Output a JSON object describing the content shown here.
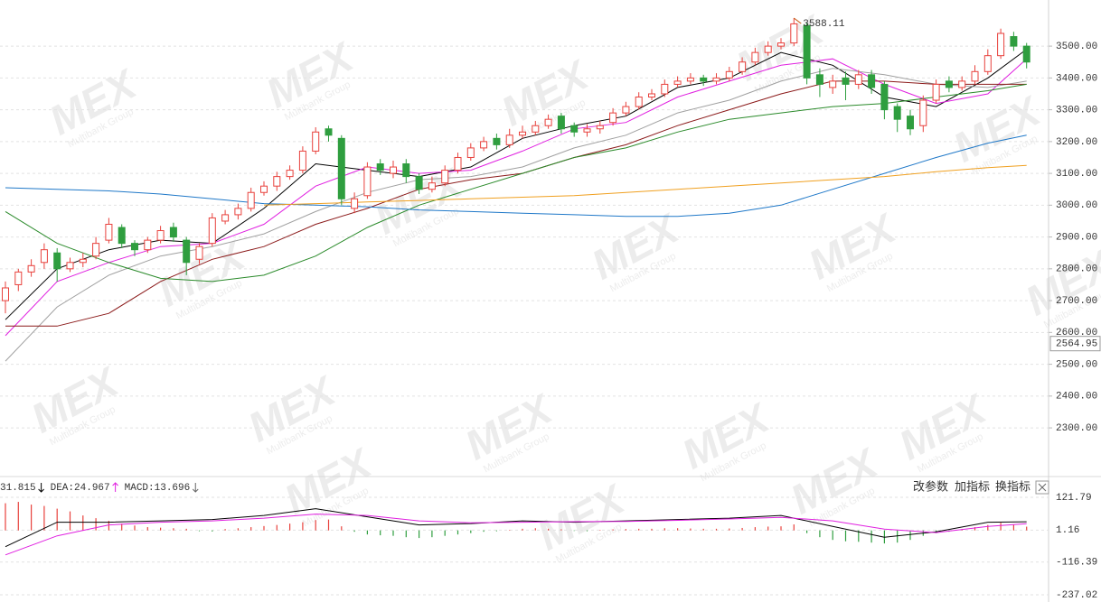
{
  "chart_data": [
    {
      "type": "candlestick",
      "ylim": [
        2147,
        3645
      ],
      "yticks": [
        {
          "value": 2300,
          "label": "2300.00"
        },
        {
          "value": 2400,
          "label": "2400.00"
        },
        {
          "value": 2500,
          "label": "2500.00"
        },
        {
          "value": 2600,
          "label": "2600.00"
        },
        {
          "value": 2700,
          "label": "2700.00"
        },
        {
          "value": 2800,
          "label": "2800.00"
        },
        {
          "value": 2900,
          "label": "2900.00"
        },
        {
          "value": 3000,
          "label": "3000.00"
        },
        {
          "value": 3100,
          "label": "3100.00"
        },
        {
          "value": 3200,
          "label": "3200.00"
        },
        {
          "value": 3300,
          "label": "3300.00"
        },
        {
          "value": 3400,
          "label": "3400.00"
        },
        {
          "value": 3500,
          "label": "3500.00"
        }
      ],
      "grid": true,
      "up_color": "#e8413c",
      "down_color": "#2f9e3f",
      "open": [
        2700,
        2750,
        2790,
        2820,
        2850,
        2800,
        2820,
        2840,
        2890,
        2930,
        2880,
        2860,
        2890,
        2930,
        2890,
        2830,
        2880,
        2950,
        2970,
        2990,
        3040,
        3060,
        3090,
        3110,
        3170,
        3240,
        3210,
        2990,
        3030,
        3130,
        3100,
        3130,
        3090,
        3050,
        3070,
        3110,
        3150,
        3180,
        3210,
        3190,
        3220,
        3230,
        3250,
        3280,
        3250,
        3230,
        3240,
        3260,
        3290,
        3310,
        3340,
        3350,
        3380,
        3390,
        3400,
        3390,
        3400,
        3420,
        3450,
        3480,
        3500,
        3510,
        3565,
        3410,
        3370,
        3400,
        3380,
        3410,
        3380,
        3310,
        3280,
        3250,
        3330,
        3390,
        3370,
        3390,
        3420,
        3470,
        3530,
        3500
      ],
      "high": [
        2760,
        2800,
        2830,
        2880,
        2865,
        2835,
        2850,
        2900,
        2960,
        2940,
        2890,
        2900,
        2935,
        2945,
        2900,
        2880,
        2975,
        2985,
        3005,
        3055,
        3075,
        3105,
        3125,
        3185,
        3245,
        3250,
        3220,
        3040,
        3135,
        3145,
        3140,
        3145,
        3100,
        3090,
        3125,
        3165,
        3195,
        3215,
        3225,
        3240,
        3250,
        3265,
        3285,
        3290,
        3260,
        3255,
        3265,
        3305,
        3325,
        3355,
        3365,
        3395,
        3405,
        3415,
        3410,
        3415,
        3435,
        3465,
        3495,
        3515,
        3525,
        3588.11,
        3575,
        3430,
        3410,
        3420,
        3425,
        3425,
        3390,
        3320,
        3300,
        3345,
        3395,
        3405,
        3405,
        3440,
        3490,
        3555,
        3545,
        3510
      ],
      "low": [
        2660,
        2730,
        2775,
        2800,
        2760,
        2790,
        2805,
        2830,
        2880,
        2865,
        2840,
        2850,
        2880,
        2885,
        2780,
        2815,
        2870,
        2940,
        2955,
        2980,
        3030,
        3045,
        3080,
        3100,
        3160,
        3200,
        3000,
        2975,
        3020,
        3095,
        3085,
        3070,
        3035,
        3040,
        3060,
        3100,
        3140,
        3170,
        3175,
        3180,
        3210,
        3220,
        3240,
        3225,
        3215,
        3215,
        3225,
        3250,
        3280,
        3300,
        3330,
        3340,
        3370,
        3380,
        3375,
        3380,
        3390,
        3410,
        3440,
        3470,
        3490,
        3500,
        3380,
        3340,
        3350,
        3330,
        3365,
        3350,
        3270,
        3230,
        3220,
        3230,
        3320,
        3355,
        3360,
        3380,
        3410,
        3460,
        3485,
        3430
      ],
      "close": [
        2740,
        2790,
        2810,
        2860,
        2800,
        2820,
        2830,
        2880,
        2940,
        2880,
        2860,
        2890,
        2920,
        2900,
        2820,
        2870,
        2960,
        2970,
        2990,
        3040,
        3060,
        3090,
        3110,
        3170,
        3230,
        3220,
        3020,
        3020,
        3120,
        3110,
        3120,
        3090,
        3050,
        3070,
        3110,
        3150,
        3180,
        3200,
        3190,
        3220,
        3230,
        3250,
        3270,
        3240,
        3230,
        3240,
        3250,
        3290,
        3310,
        3340,
        3350,
        3380,
        3390,
        3400,
        3390,
        3400,
        3420,
        3450,
        3480,
        3500,
        3510,
        3570,
        3400,
        3380,
        3390,
        3380,
        3410,
        3370,
        3300,
        3270,
        3240,
        3330,
        3380,
        3370,
        3390,
        3420,
        3470,
        3540,
        3500,
        3450
      ],
      "series_x": [
        0,
        4,
        8,
        12,
        16,
        20,
        24,
        28,
        32,
        36,
        40,
        44,
        48,
        52,
        56,
        60,
        64,
        68,
        72,
        76,
        79
      ],
      "series": [
        {
          "color": "#000000",
          "values": [
            2640,
            2800,
            2860,
            2890,
            2880,
            2990,
            3130,
            3110,
            3090,
            3120,
            3210,
            3250,
            3280,
            3370,
            3400,
            3480,
            3440,
            3340,
            3310,
            3400,
            3490
          ]
        },
        {
          "color": "#e020e0",
          "values": [
            2590,
            2760,
            2820,
            2870,
            2880,
            2940,
            3060,
            3120,
            3100,
            3110,
            3170,
            3240,
            3260,
            3340,
            3390,
            3440,
            3460,
            3380,
            3320,
            3350,
            3460
          ]
        },
        {
          "color": "#a0a0a0",
          "values": [
            2510,
            2680,
            2780,
            2840,
            2870,
            2910,
            2980,
            3040,
            3080,
            3090,
            3120,
            3180,
            3220,
            3290,
            3330,
            3390,
            3430,
            3410,
            3380,
            3370,
            3390
          ]
        },
        {
          "color": "#8b1a1a",
          "values": [
            2620,
            2620,
            2660,
            2760,
            2830,
            2870,
            2940,
            2990,
            3050,
            3080,
            3100,
            3150,
            3190,
            3250,
            3300,
            3350,
            3390,
            3390,
            3380,
            3380,
            3380
          ]
        },
        {
          "color": "#2a8a2a",
          "values": [
            2980,
            2880,
            2820,
            2770,
            2760,
            2780,
            2840,
            2930,
            3000,
            3050,
            3100,
            3150,
            3180,
            3230,
            3270,
            3290,
            3310,
            3320,
            3340,
            3360,
            3380
          ]
        },
        {
          "color": "#1f78c8",
          "values": [
            3055,
            3050,
            3045,
            3035,
            3020,
            3005,
            3000,
            2995,
            2985,
            2980,
            2975,
            2970,
            2965,
            2965,
            2975,
            3000,
            3050,
            3100,
            3150,
            3195,
            3220
          ]
        },
        {
          "color": "#f0a020",
          "values": [
            null,
            null,
            null,
            null,
            null,
            3000,
            3005,
            3010,
            3015,
            3020,
            3025,
            3030,
            3040,
            3050,
            3060,
            3070,
            3080,
            3090,
            3105,
            3118,
            3125
          ]
        }
      ],
      "price_label": 2564.95,
      "watermark": [
        "MEX",
        "Multibank Group"
      ]
    },
    {
      "type": "macd",
      "ylim": [
        -263.6,
        131.8
      ],
      "yticks": [
        121.79,
        1.16,
        -116.39,
        -237.02
      ],
      "header": [
        {
          "text": "31.815",
          "color": "#000000",
          "arrow": "down"
        },
        {
          "text": "DEA:24.967",
          "color": "#e020e0",
          "arrow": "up"
        },
        {
          "text": "MACD:13.696",
          "color": "#666666",
          "arrow": "down"
        }
      ],
      "buttons": [
        "改参数",
        "加指标",
        "换指标"
      ],
      "up_color": "#e8413c",
      "down_color": "#2f9e3f",
      "histogram": [
        100,
        105,
        95,
        90,
        80,
        70,
        55,
        45,
        35,
        25,
        18,
        12,
        10,
        8,
        6,
        -3,
        -4,
        5,
        8,
        12,
        16,
        20,
        25,
        30,
        38,
        40,
        15,
        -5,
        -15,
        -18,
        -20,
        -25,
        -28,
        -25,
        -20,
        -15,
        -10,
        -5,
        -3,
        2,
        6,
        8,
        6,
        4,
        -2,
        -3,
        2,
        4,
        5,
        6,
        6,
        8,
        8,
        7,
        6,
        6,
        7,
        9,
        12,
        14,
        15,
        22,
        -10,
        -25,
        -35,
        -40,
        -42,
        -45,
        -48,
        -45,
        -35,
        -20,
        -10,
        -5,
        5,
        12,
        20,
        28,
        22,
        13.696
      ],
      "series_x": [
        0,
        4,
        8,
        12,
        16,
        20,
        24,
        28,
        32,
        36,
        40,
        44,
        48,
        52,
        56,
        60,
        64,
        68,
        72,
        76,
        79
      ],
      "series": [
        {
          "color": "#000000",
          "values": [
            -60,
            30,
            30,
            35,
            40,
            55,
            80,
            50,
            20,
            25,
            35,
            30,
            35,
            40,
            45,
            55,
            15,
            -25,
            -5,
            30,
            31.815
          ]
        },
        {
          "color": "#e020e0",
          "values": [
            -90,
            -20,
            20,
            30,
            35,
            45,
            60,
            55,
            35,
            28,
            30,
            32,
            33,
            37,
            42,
            48,
            35,
            5,
            -8,
            15,
            24.967
          ]
        }
      ]
    }
  ]
}
